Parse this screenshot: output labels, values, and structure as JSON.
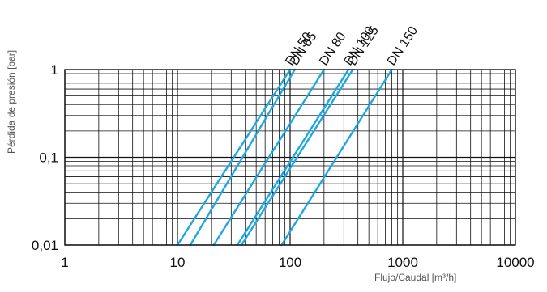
{
  "chart_data": {
    "type": "line",
    "xscale": "log",
    "yscale": "log",
    "xlim": [
      1,
      10000
    ],
    "ylim": [
      0.01,
      1
    ],
    "xlabel": "Flujo/Caudal [m³/h]",
    "ylabel": "Pérdida de presión [bar]",
    "x_tick_labels": [
      "1",
      "10",
      "100",
      "1000",
      "10000"
    ],
    "y_tick_labels": [
      "0,01",
      "0,1",
      "1"
    ],
    "grid": true,
    "line_color": "#1ea7e1",
    "series": [
      {
        "name": "DN 50",
        "x": [
          10,
          100
        ],
        "y": [
          0.01,
          1
        ]
      },
      {
        "name": "DN 65",
        "x": [
          13,
          110
        ],
        "y": [
          0.01,
          1
        ]
      },
      {
        "name": "DN 80",
        "x": [
          21,
          200
        ],
        "y": [
          0.01,
          1
        ]
      },
      {
        "name": "DN 100",
        "x": [
          34,
          330
        ],
        "y": [
          0.01,
          1
        ]
      },
      {
        "name": "DN 125",
        "x": [
          37,
          360
        ],
        "y": [
          0.01,
          1
        ]
      },
      {
        "name": "DN 150",
        "x": [
          84,
          800
        ],
        "y": [
          0.01,
          1
        ]
      }
    ]
  }
}
